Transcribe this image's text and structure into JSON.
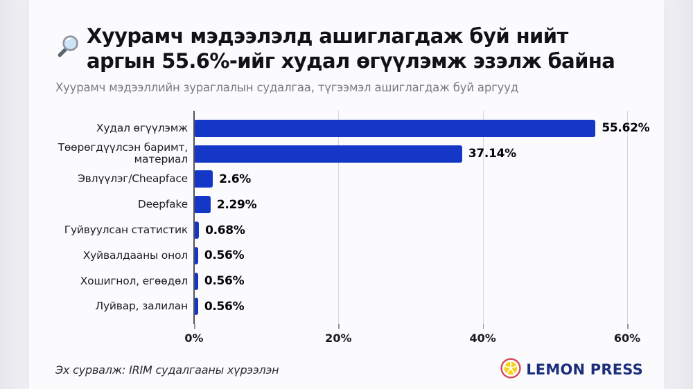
{
  "header": {
    "title_line1": "Хуурамч мэдээлэлд ашиглагдаж буй нийт",
    "title_line2": "аргын 55.6%-ийг худал өгүүлэмж эзэлж байна",
    "title_icon": "magnifying-glass",
    "subtitle": "Хуурамч мэдээллийн зураглалын судалгаа, түгээмэл ашиглагдаж буй аргууд"
  },
  "chart_data": {
    "type": "bar",
    "orientation": "horizontal",
    "title": "Хуурамч мэдээлэлд ашиглагдаж буй нийт аргын 55.6%-ийг худал өгүүлэмж эзэлж байна",
    "categories": [
      "Худал өгүүлэмж",
      "Төөрөгдүүлсэн баримт, материал",
      "Эвлүүлэг/Cheapface",
      "Deepfake",
      "Гуйвуулсан статистик",
      "Хуйвалдааны онол",
      "Хошигнол, егөөдөл",
      "Луйвар, залилан"
    ],
    "values": [
      55.62,
      37.14,
      2.6,
      2.29,
      0.68,
      0.56,
      0.56,
      0.56
    ],
    "value_labels": [
      "55.62%",
      "37.14%",
      "2.6%",
      "2.29%",
      "0.68%",
      "0.56%",
      "0.56%",
      "0.56%"
    ],
    "x_ticks": [
      "0%",
      "20%",
      "40%",
      "60%"
    ],
    "xlim": [
      0,
      60
    ],
    "xlabel": "",
    "ylabel": "",
    "grid": true,
    "legend": false,
    "bar_color": "#1437c8"
  },
  "footer": {
    "source": "Эх сурвалж: IRIM судалгааны хүрээлэн",
    "brand_name": "LEMON PRESS",
    "brand_icon": "lemon-slice"
  },
  "colors": {
    "bar": "#1437c8",
    "axis": "#515158",
    "gridline": "#d7d7db",
    "title_text": "#121216",
    "subtitle_text": "#7b7b83",
    "brand_navy": "#1c2d7c",
    "lemon_yellow": "#f5d21d",
    "lemon_ring": "#d64a60",
    "background": "#fbfbfd"
  }
}
